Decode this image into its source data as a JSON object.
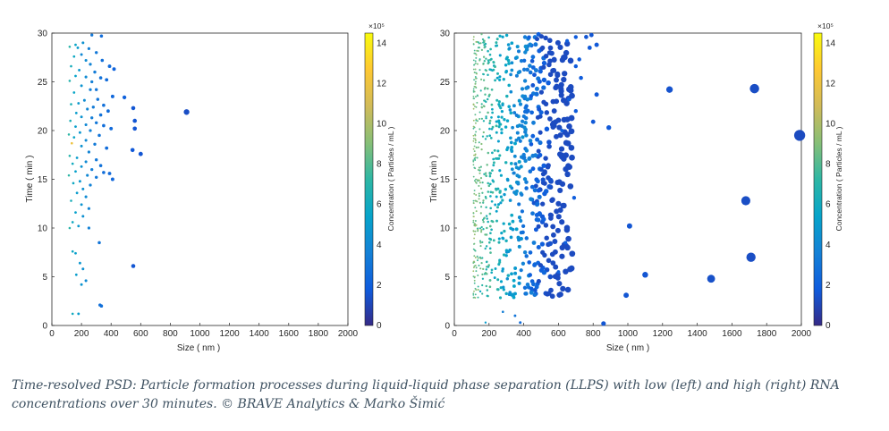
{
  "colorscale": [
    "#352a87",
    "#0f5cdd",
    "#1481d6",
    "#06a4ca",
    "#2eb7a4",
    "#87bf77",
    "#d1bb59",
    "#fec832",
    "#f9fb0e"
  ],
  "caption": {
    "line1": "Time-resolved PSD: Particle formation processes during liquid-liquid phase separation (LLPS) with low (left) and high (right) RNA",
    "line2": "concentrations over 30 minutes. © BRAVE Analytics & Marko Šimić"
  },
  "chart_data": [
    {
      "type": "scatter",
      "name": "low RNA",
      "xlabel": "Size ( nm )",
      "ylabel": "Time ( min )",
      "xlim": [
        0,
        2000
      ],
      "ylim": [
        0,
        30
      ],
      "xticks": [
        "0",
        "200",
        "400",
        "600",
        "800",
        "1000",
        "1200",
        "1400",
        "1600",
        "1800",
        "2000"
      ],
      "yticks": [
        "0",
        "5",
        "10",
        "15",
        "20",
        "25",
        "30"
      ],
      "colorbar": {
        "label": "Concentration ( Particles / mL )",
        "exponent": "×10⁵",
        "min": 0,
        "max": 14.5,
        "ticks": [
          "0",
          "2",
          "4",
          "6",
          "8",
          "10",
          "12",
          "14"
        ]
      },
      "points": [
        [
          270,
          29.8,
          3.2
        ],
        [
          335,
          29.7,
          2.6
        ],
        [
          210,
          29.0,
          4.5
        ],
        [
          160,
          28.8,
          5.6
        ],
        [
          120,
          28.6,
          7.0
        ],
        [
          175,
          28.5,
          5.0
        ],
        [
          250,
          28.4,
          3.6
        ],
        [
          300,
          28.0,
          3.2
        ],
        [
          200,
          27.8,
          4.0
        ],
        [
          150,
          27.6,
          5.8
        ],
        [
          340,
          27.2,
          2.8
        ],
        [
          230,
          27.2,
          4.2
        ],
        [
          260,
          26.8,
          3.8
        ],
        [
          390,
          26.6,
          2.5
        ],
        [
          420,
          26.3,
          2.2
        ],
        [
          130,
          26.6,
          6.2
        ],
        [
          185,
          26.2,
          4.8
        ],
        [
          290,
          26.0,
          3.4
        ],
        [
          160,
          25.6,
          5.4
        ],
        [
          230,
          25.5,
          4.1
        ],
        [
          330,
          25.4,
          2.9
        ],
        [
          370,
          25.2,
          2.6
        ],
        [
          120,
          25.1,
          6.8
        ],
        [
          270,
          25.0,
          3.6
        ],
        [
          200,
          24.6,
          4.6
        ],
        [
          300,
          24.2,
          3.1
        ],
        [
          260,
          24.2,
          3.6
        ],
        [
          150,
          23.9,
          5.6
        ],
        [
          410,
          23.5,
          2.4
        ],
        [
          490,
          23.4,
          2.1
        ],
        [
          310,
          23.2,
          3.0
        ],
        [
          220,
          23.1,
          4.2
        ],
        [
          180,
          22.8,
          4.8
        ],
        [
          130,
          22.7,
          6.4
        ],
        [
          350,
          22.6,
          2.8
        ],
        [
          550,
          22.3,
          1.6
        ],
        [
          280,
          22.4,
          3.4
        ],
        [
          240,
          22.2,
          3.9
        ],
        [
          910,
          21.9,
          1.3
        ],
        [
          380,
          22.0,
          2.6
        ],
        [
          165,
          21.8,
          5.1
        ],
        [
          330,
          21.6,
          2.9
        ],
        [
          200,
          21.4,
          4.6
        ],
        [
          270,
          21.3,
          3.5
        ],
        [
          125,
          21.0,
          6.5
        ],
        [
          560,
          21.0,
          1.6
        ],
        [
          300,
          20.8,
          3.2
        ],
        [
          230,
          20.6,
          4.0
        ],
        [
          350,
          20.5,
          2.7
        ],
        [
          160,
          20.4,
          5.2
        ],
        [
          560,
          20.2,
          1.6
        ],
        [
          400,
          20.2,
          2.5
        ],
        [
          260,
          20.0,
          3.7
        ],
        [
          190,
          19.8,
          4.7
        ],
        [
          115,
          19.6,
          7.2
        ],
        [
          320,
          19.5,
          3.0
        ],
        [
          150,
          19.3,
          5.6
        ],
        [
          230,
          19.0,
          4.1
        ],
        [
          135,
          18.7,
          12.0
        ],
        [
          290,
          18.6,
          3.3
        ],
        [
          200,
          18.4,
          4.5
        ],
        [
          370,
          18.2,
          2.6
        ],
        [
          545,
          18.0,
          1.7
        ],
        [
          600,
          17.6,
          1.6
        ],
        [
          250,
          17.8,
          3.8
        ],
        [
          120,
          17.4,
          6.9
        ],
        [
          170,
          17.2,
          5.0
        ],
        [
          300,
          17.0,
          3.2
        ],
        [
          230,
          16.8,
          4.1
        ],
        [
          140,
          16.6,
          6.0
        ],
        [
          330,
          16.4,
          2.9
        ],
        [
          200,
          16.3,
          4.6
        ],
        [
          270,
          16.0,
          3.5
        ],
        [
          390,
          15.6,
          2.5
        ],
        [
          350,
          15.7,
          2.7
        ],
        [
          160,
          15.8,
          5.3
        ],
        [
          115,
          15.4,
          7.2
        ],
        [
          240,
          15.4,
          4.0
        ],
        [
          300,
          15.2,
          3.2
        ],
        [
          410,
          15.0,
          2.4
        ],
        [
          190,
          14.8,
          4.7
        ],
        [
          145,
          14.6,
          5.8
        ],
        [
          260,
          14.4,
          3.7
        ],
        [
          210,
          14.0,
          4.4
        ],
        [
          170,
          13.6,
          5.0
        ],
        [
          230,
          13.2,
          4.1
        ],
        [
          130,
          12.8,
          6.3
        ],
        [
          200,
          12.4,
          4.6
        ],
        [
          250,
          12.0,
          3.8
        ],
        [
          160,
          11.6,
          5.3
        ],
        [
          210,
          11.2,
          4.4
        ],
        [
          140,
          10.6,
          5.9
        ],
        [
          180,
          10.2,
          4.8
        ],
        [
          250,
          10.0,
          3.7
        ],
        [
          120,
          10.0,
          7.0
        ],
        [
          320,
          8.5,
          3.0
        ],
        [
          140,
          7.6,
          5.8
        ],
        [
          160,
          7.4,
          5.2
        ],
        [
          190,
          6.4,
          4.7
        ],
        [
          550,
          6.1,
          1.6
        ],
        [
          210,
          5.8,
          4.4
        ],
        [
          165,
          5.2,
          5.1
        ],
        [
          200,
          4.2,
          4.6
        ],
        [
          230,
          4.6,
          4.1
        ],
        [
          335,
          2.0,
          2.8
        ],
        [
          325,
          2.1,
          2.8
        ],
        [
          140,
          1.2,
          6.0
        ],
        [
          180,
          1.2,
          5.0
        ]
      ]
    },
    {
      "type": "scatter",
      "name": "high RNA",
      "xlabel": "Size ( nm )",
      "ylabel": "Time ( min )",
      "xlim": [
        0,
        2000
      ],
      "ylim": [
        0,
        30
      ],
      "xticks": [
        "0",
        "200",
        "400",
        "600",
        "800",
        "1000",
        "1200",
        "1400",
        "1600",
        "1800",
        "2000"
      ],
      "yticks": [
        "0",
        "5",
        "10",
        "15",
        "20",
        "25",
        "30"
      ],
      "colorbar": {
        "label": "Concentration ( Particles / mL )",
        "exponent": "×10⁵",
        "min": 0,
        "max": 14.5,
        "ticks": [
          "0",
          "2",
          "4",
          "6",
          "8",
          "10",
          "12",
          "14"
        ]
      },
      "points": [
        [
          1990,
          19.5,
          1.2
        ],
        [
          1730,
          24.3,
          1.3
        ],
        [
          1680,
          12.8,
          1.3
        ],
        [
          1710,
          7.0,
          1.3
        ],
        [
          1480,
          4.8,
          1.4
        ],
        [
          1240,
          24.2,
          1.5
        ],
        [
          1010,
          10.2,
          1.6
        ],
        [
          1100,
          5.2,
          1.6
        ],
        [
          990,
          3.1,
          1.6
        ],
        [
          860,
          0.2,
          1.6
        ],
        [
          890,
          20.3,
          1.7
        ],
        [
          820,
          23.7,
          1.7
        ],
        [
          800,
          20.9,
          1.7
        ],
        [
          790,
          29.8,
          1.6
        ],
        [
          760,
          29.6,
          1.6
        ],
        [
          780,
          28.5,
          1.7
        ],
        [
          820,
          28.8,
          1.7
        ],
        [
          720,
          27.3,
          1.8
        ],
        [
          700,
          26.6,
          1.8
        ],
        [
          730,
          25.4,
          1.8
        ],
        [
          660,
          23.2,
          1.9
        ],
        [
          700,
          22.0,
          1.8
        ],
        [
          620,
          20.0,
          2.0
        ],
        [
          690,
          13.1,
          1.9
        ],
        [
          640,
          8.5,
          2.0
        ],
        [
          600,
          5.5,
          2.0
        ],
        [
          650,
          29.2,
          1.9
        ],
        [
          700,
          29.6,
          1.8
        ],
        [
          180,
          0.3,
          5.0
        ],
        [
          280,
          1.4,
          3.5
        ],
        [
          350,
          1.0,
          3.0
        ],
        [
          150,
          3.5,
          5.5
        ],
        [
          380,
          0.3,
          2.6
        ]
      ],
      "dense_cloud": {
        "x_range": [
          110,
          680
        ],
        "y_range": [
          2.8,
          30
        ],
        "density_note": "ensemble of many small particles"
      }
    }
  ]
}
